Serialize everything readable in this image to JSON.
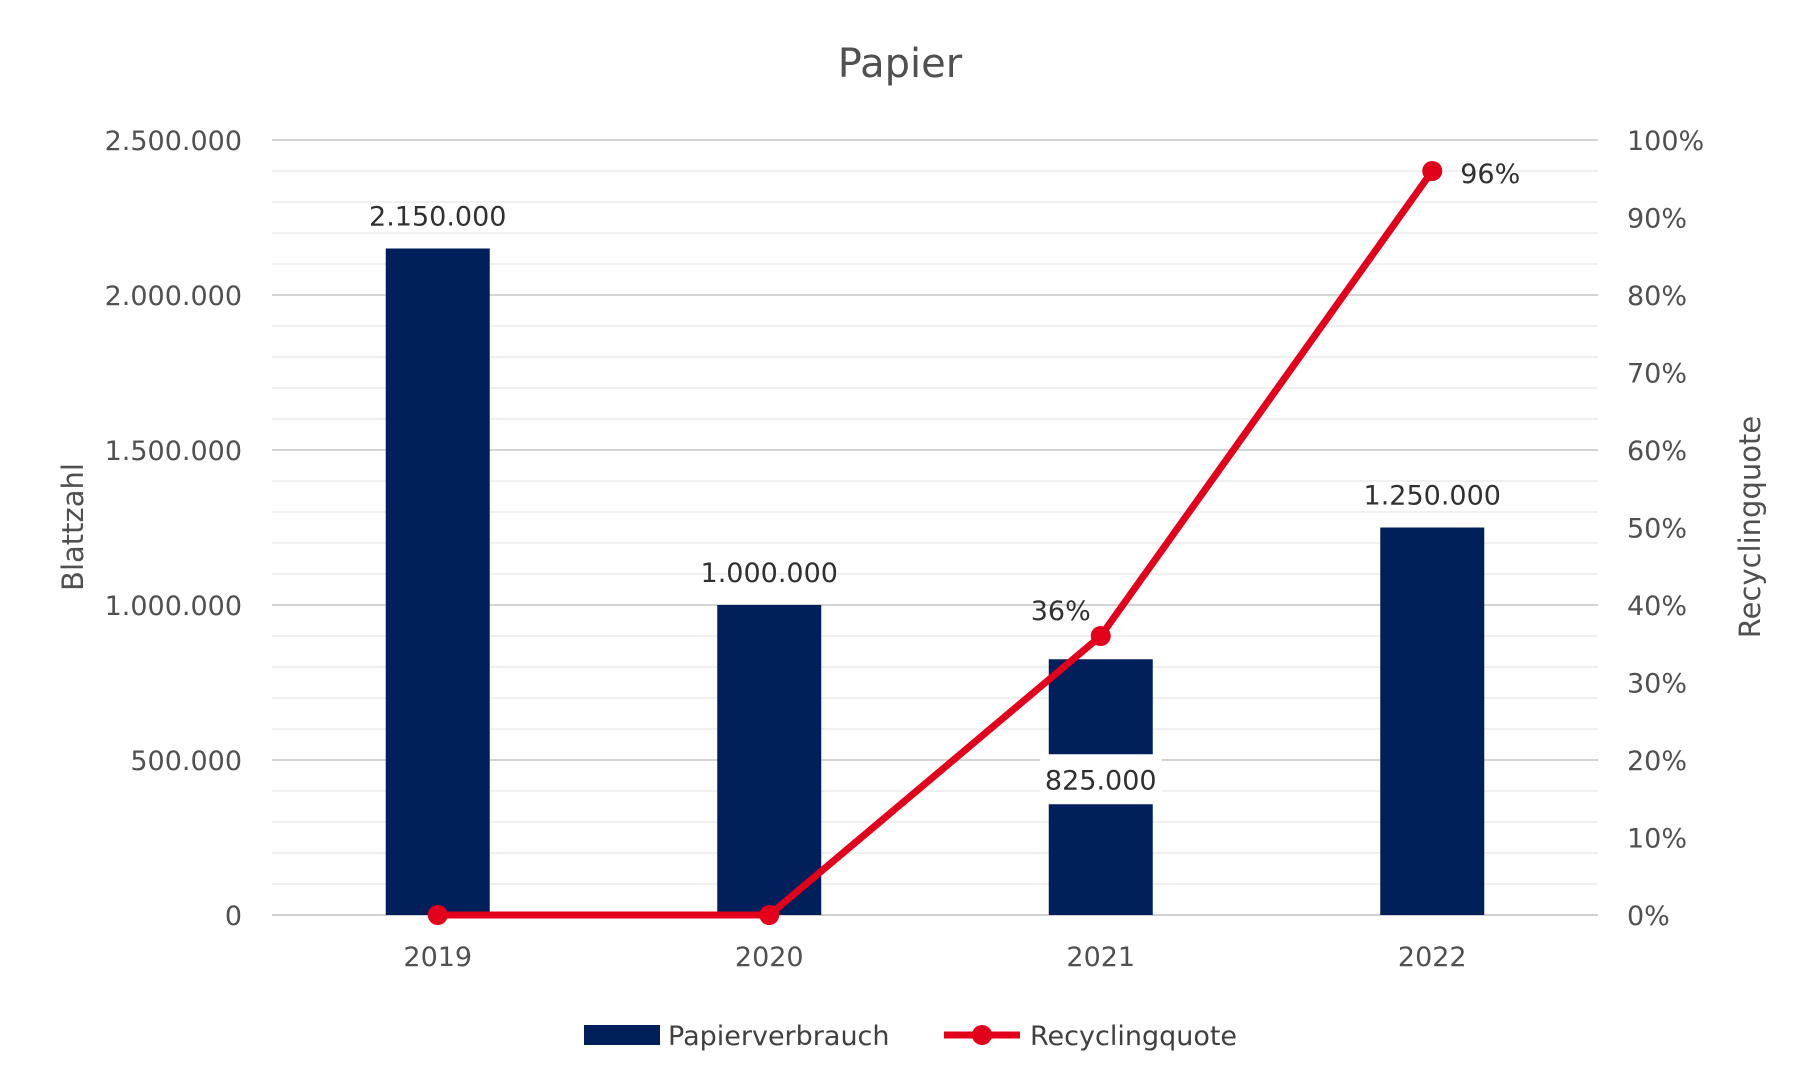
{
  "chart_data": {
    "type": "bar",
    "title": "Papier",
    "categories": [
      "2019",
      "2020",
      "2021",
      "2022"
    ],
    "ylabel": "Blattzahl",
    "y2label": "Recyclingquote",
    "ylim": [
      0,
      2500000
    ],
    "y2lim": [
      0,
      1
    ],
    "y_ticks": [
      "0",
      "500.000",
      "1.000.000",
      "1.500.000",
      "2.000.000",
      "2.500.000"
    ],
    "y2_ticks": [
      "0%",
      "10%",
      "20%",
      "30%",
      "40%",
      "50%",
      "60%",
      "70%",
      "80%",
      "90%",
      "100%"
    ],
    "grid": true,
    "legend_position": "bottom",
    "series": [
      {
        "name": "Papierverbrauch",
        "kind": "bar",
        "axis": "left",
        "color": "#001f5b",
        "values": [
          2150000,
          1000000,
          825000,
          1250000
        ],
        "labels": [
          "2.150.000",
          "1.000.000",
          "825.000",
          "1.250.000"
        ]
      },
      {
        "name": "Recyclingquote",
        "kind": "line",
        "axis": "right",
        "color": "#e2001a",
        "values": [
          0,
          0,
          0.36,
          0.96
        ],
        "labels": [
          "",
          "",
          "36%",
          "96%"
        ]
      }
    ]
  }
}
